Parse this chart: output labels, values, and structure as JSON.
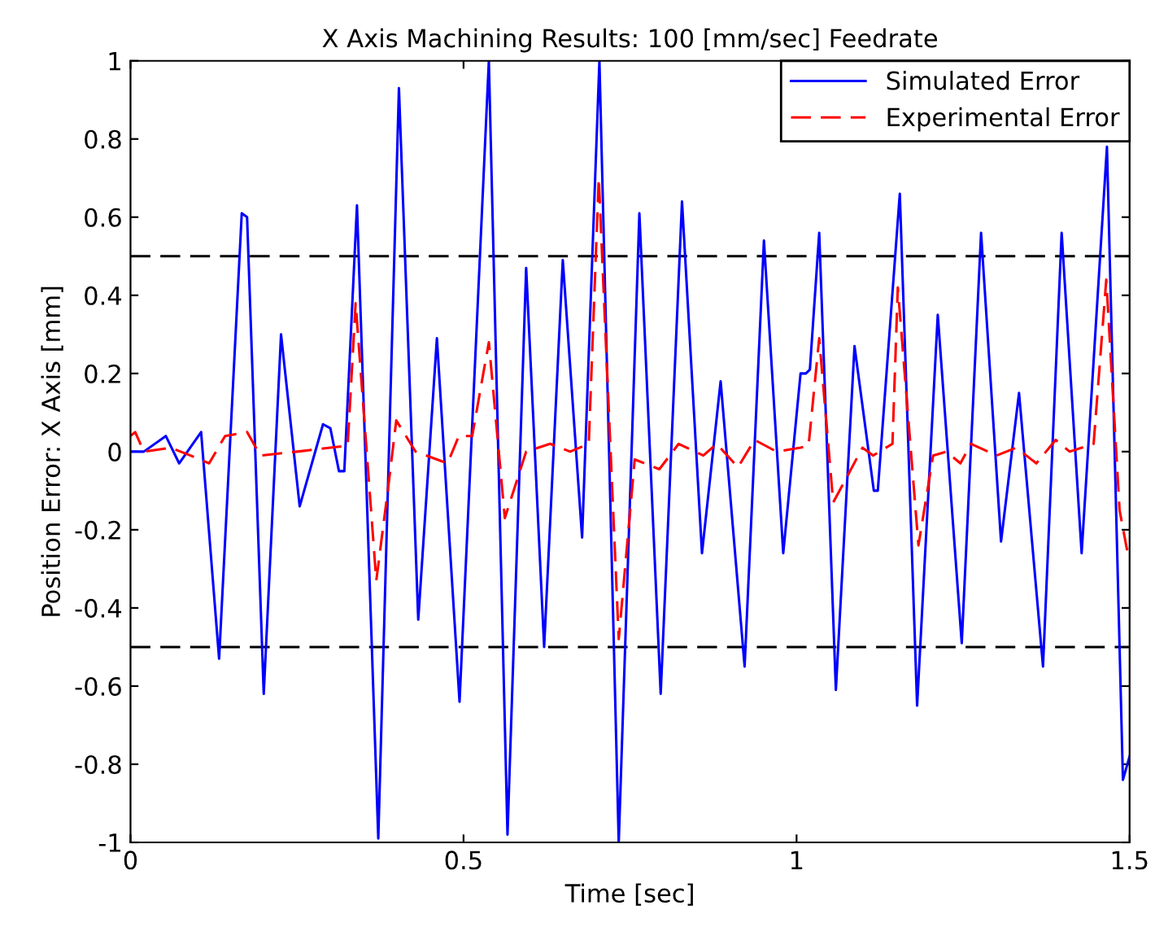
{
  "chart_data": {
    "type": "line",
    "title": "X Axis Machining Results: 100 [mm/sec] Feedrate",
    "xlabel": "Time [sec]",
    "ylabel": "Position Error: X Axis [mm]",
    "xlim": [
      0,
      1.5
    ],
    "xticks": [
      0,
      0.5,
      1,
      1.5
    ],
    "ylim": [
      -1,
      1
    ],
    "yticks": [
      -1,
      -0.8,
      -0.6,
      -0.4,
      -0.2,
      0,
      0.2,
      0.4,
      0.6,
      0.8,
      1
    ],
    "grid": false,
    "legend": "top right",
    "ref_lines": [
      {
        "axis": "y",
        "value": 0.5,
        "color": "#000000",
        "line_style": "dashed"
      },
      {
        "axis": "y",
        "value": -0.5,
        "color": "#000000",
        "line_style": "dashed"
      }
    ],
    "series": [
      {
        "name": "Simulated Error",
        "color": "#0000ff",
        "line_style": "solid",
        "x": [
          0,
          0.02,
          0.053,
          0.073,
          0.106,
          0.133,
          0.167,
          0.175,
          0.2,
          0.226,
          0.254,
          0.289,
          0.3,
          0.313,
          0.321,
          0.34,
          0.372,
          0.403,
          0.432,
          0.46,
          0.494,
          0.538,
          0.566,
          0.594,
          0.621,
          0.649,
          0.678,
          0.704,
          0.733,
          0.764,
          0.796,
          0.828,
          0.858,
          0.886,
          0.922,
          0.951,
          0.98,
          1.006,
          1.014,
          1.02,
          1.034,
          1.059,
          1.087,
          1.116,
          1.122,
          1.155,
          1.181,
          1.212,
          1.248,
          1.277,
          1.307,
          1.334,
          1.37,
          1.398,
          1.428,
          1.466,
          1.49,
          1.5
        ],
        "values": [
          0,
          0,
          0.04,
          -0.03,
          0.05,
          -0.53,
          0.61,
          0.6,
          -0.62,
          0.3,
          -0.14,
          0.07,
          0.06,
          -0.05,
          -0.05,
          0.63,
          -0.99,
          0.93,
          -0.43,
          0.29,
          -0.64,
          1.0,
          -0.98,
          0.47,
          -0.5,
          0.49,
          -0.22,
          1.0,
          -1.0,
          0.61,
          -0.62,
          0.64,
          -0.26,
          0.18,
          -0.55,
          0.54,
          -0.26,
          0.2,
          0.2,
          0.21,
          0.56,
          -0.61,
          0.27,
          -0.1,
          -0.1,
          0.66,
          -0.65,
          0.35,
          -0.49,
          0.56,
          -0.23,
          0.15,
          -0.55,
          0.56,
          -0.26,
          0.78,
          -0.84,
          -0.78
        ]
      },
      {
        "name": "Experimental Error",
        "color": "#ff0000",
        "line_style": "dashed",
        "x": [
          0,
          0.007,
          0.02,
          0.06,
          0.09,
          0.118,
          0.142,
          0.175,
          0.195,
          0.25,
          0.3,
          0.326,
          0.338,
          0.369,
          0.387,
          0.399,
          0.428,
          0.476,
          0.493,
          0.513,
          0.538,
          0.562,
          0.594,
          0.63,
          0.66,
          0.688,
          0.703,
          0.733,
          0.757,
          0.794,
          0.823,
          0.86,
          0.88,
          0.912,
          0.937,
          0.97,
          1.006,
          1.018,
          1.034,
          1.055,
          1.099,
          1.115,
          1.144,
          1.152,
          1.183,
          1.205,
          1.225,
          1.246,
          1.262,
          1.3,
          1.33,
          1.36,
          1.389,
          1.41,
          1.446,
          1.465,
          1.485,
          1.496,
          1.5
        ],
        "values": [
          0.04,
          0.05,
          0,
          0.01,
          -0.01,
          -0.03,
          0.04,
          0.05,
          -0.01,
          0,
          0.01,
          0.015,
          0.38,
          -0.33,
          -0.09,
          0.08,
          0,
          -0.03,
          0.04,
          0.04,
          0.28,
          -0.17,
          0,
          0.02,
          0,
          0.02,
          0.7,
          -0.48,
          -0.02,
          -0.045,
          0.02,
          -0.01,
          0.02,
          -0.04,
          0.03,
          0,
          0.01,
          0.015,
          0.29,
          -0.13,
          0.01,
          -0.01,
          0.02,
          0.42,
          -0.24,
          -0.01,
          0,
          -0.03,
          0.02,
          -0.01,
          0.01,
          -0.03,
          0.03,
          0,
          0.02,
          0.44,
          -0.15,
          -0.25,
          -0.24
        ]
      }
    ]
  }
}
